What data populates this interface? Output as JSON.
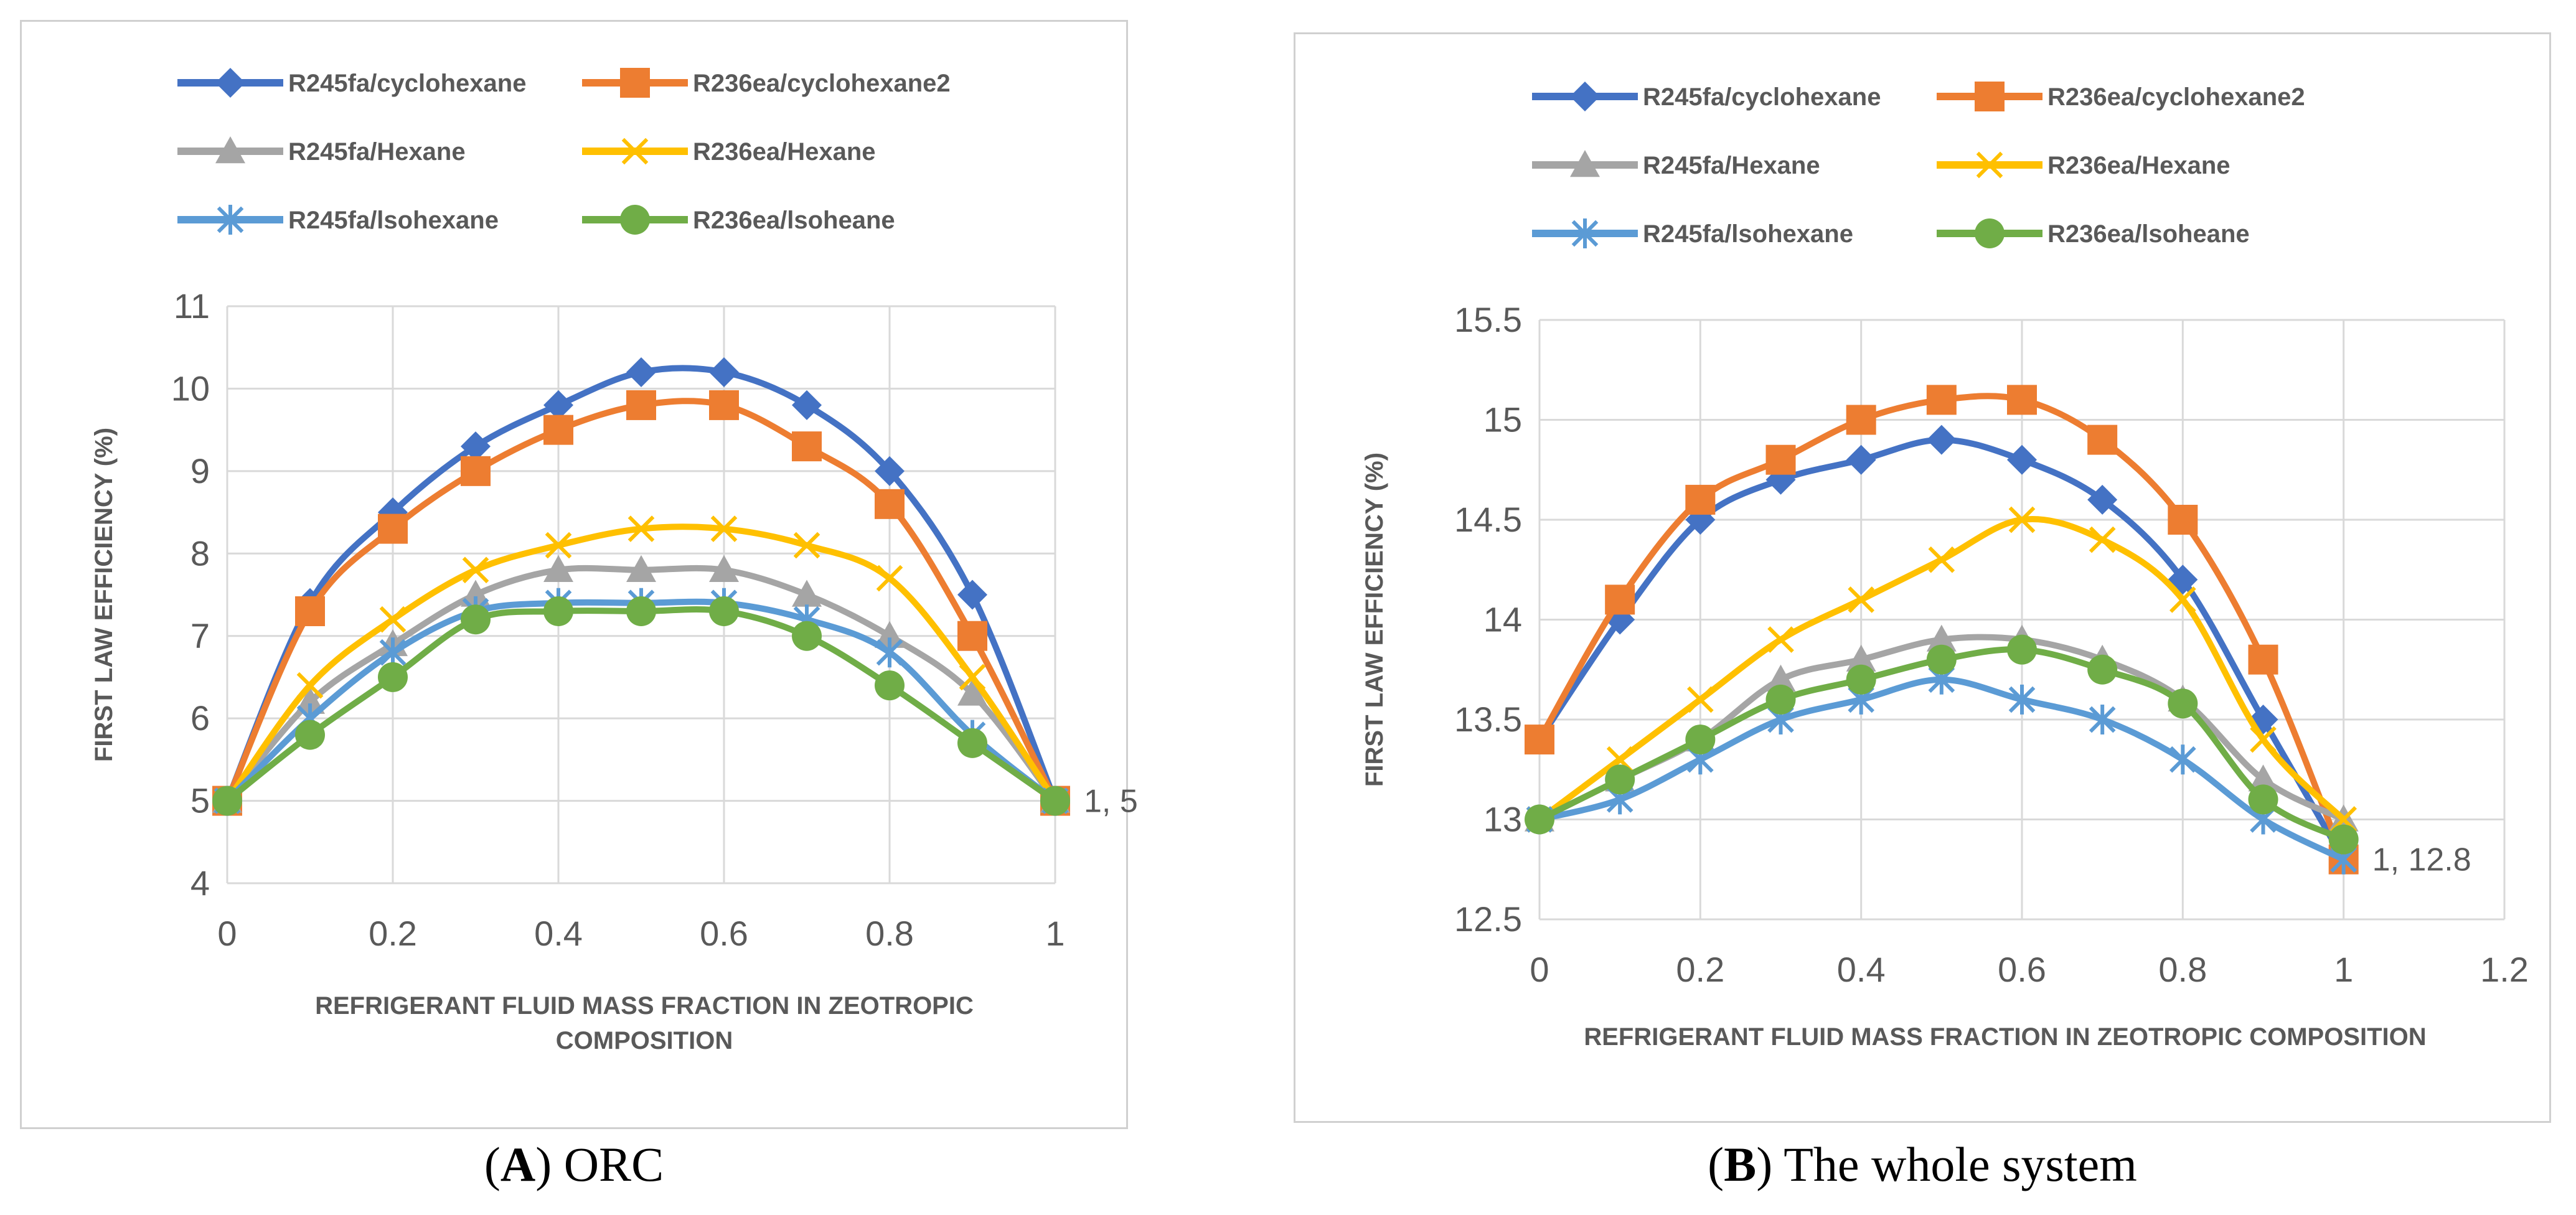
{
  "chart_data": [
    {
      "type": "line",
      "caption_letter": "A",
      "caption_text": ") ORC",
      "xlabel_lines": [
        "REFRIGERANT FLUID MASS FRACTION IN ZEOTROPIC",
        "COMPOSITION"
      ],
      "ylabel": "FIRST LAW EFFICIENCY (%)",
      "xlim": [
        0,
        1
      ],
      "ylim": [
        4,
        11
      ],
      "xticks": [
        0,
        0.2,
        0.4,
        0.6,
        0.8,
        1
      ],
      "xtick_labels": [
        "0",
        "0.2",
        "0.4",
        "0.6",
        "0.8",
        "1"
      ],
      "yticks": [
        4,
        5,
        6,
        7,
        8,
        9,
        10,
        11
      ],
      "ytick_labels": [
        "4",
        "5",
        "6",
        "7",
        "8",
        "9",
        "10",
        "11"
      ],
      "grid": true,
      "legend_position": "top",
      "annotation": {
        "text": "1, 5",
        "x": 1,
        "y": 5
      },
      "x": [
        0,
        0.1,
        0.2,
        0.3,
        0.4,
        0.5,
        0.6,
        0.7,
        0.8,
        0.9,
        1
      ],
      "series": [
        {
          "name": "R245fa/cyclohexane",
          "color": "#4472C4",
          "marker": "diamond",
          "values": [
            5,
            7.4,
            8.5,
            9.3,
            9.8,
            10.2,
            10.2,
            9.8,
            9.0,
            7.5,
            5
          ]
        },
        {
          "name": "R236ea/cyclohexane2",
          "color": "#ED7D31",
          "marker": "square",
          "values": [
            5,
            7.3,
            8.3,
            9.0,
            9.5,
            9.8,
            9.8,
            9.3,
            8.6,
            7.0,
            5
          ]
        },
        {
          "name": "R245fa/Hexane",
          "color": "#A5A5A5",
          "marker": "triangle",
          "values": [
            5,
            6.2,
            6.9,
            7.5,
            7.8,
            7.8,
            7.8,
            7.5,
            7.0,
            6.3,
            5
          ]
        },
        {
          "name": "R236ea/Hexane",
          "color": "#FFC000",
          "marker": "x",
          "values": [
            5,
            6.4,
            7.2,
            7.8,
            8.1,
            8.3,
            8.3,
            8.1,
            7.7,
            6.5,
            5
          ]
        },
        {
          "name": "R245fa/Isohexane",
          "color": "#5B9BD5",
          "marker": "star",
          "values": [
            5,
            6.0,
            6.8,
            7.3,
            7.4,
            7.4,
            7.4,
            7.2,
            6.8,
            5.8,
            5
          ]
        },
        {
          "name": "R236ea/Isoheane",
          "color": "#70AD47",
          "marker": "circle",
          "values": [
            5,
            5.8,
            6.5,
            7.2,
            7.3,
            7.3,
            7.3,
            7.0,
            6.4,
            5.7,
            5
          ]
        }
      ],
      "legend_labels": [
        "R245fa/cyclohexane",
        "R236ea/cyclohexane2",
        "R245fa/Hexane",
        "R236ea/Hexane",
        "R245fa/lsohexane",
        "R236ea/lsoheane"
      ]
    },
    {
      "type": "line",
      "caption_letter": "B",
      "caption_text": ") The whole system",
      "xlabel_lines": [
        "REFRIGERANT FLUID MASS FRACTION IN ZEOTROPIC COMPOSITION"
      ],
      "ylabel": "FIRST LAW EFFICIENCY (%)",
      "xlim": [
        0,
        1.2
      ],
      "ylim": [
        12.5,
        15.5
      ],
      "xticks": [
        0,
        0.2,
        0.4,
        0.6,
        0.8,
        1,
        1.2
      ],
      "xtick_labels": [
        "0",
        "0.2",
        "0.4",
        "0.6",
        "0.8",
        "1",
        "1.2"
      ],
      "yticks": [
        12.5,
        13,
        13.5,
        14,
        14.5,
        15,
        15.5
      ],
      "ytick_labels": [
        "12.5",
        "13",
        "13.5",
        "14",
        "14.5",
        "15",
        "15.5"
      ],
      "grid": true,
      "legend_position": "top",
      "annotation": {
        "text": "1, 12.8",
        "x": 1,
        "y": 12.8
      },
      "x": [
        0,
        0.1,
        0.2,
        0.3,
        0.4,
        0.5,
        0.6,
        0.7,
        0.8,
        0.9,
        1
      ],
      "series": [
        {
          "name": "R245fa/cyclohexane",
          "color": "#4472C4",
          "marker": "diamond",
          "values": [
            13.4,
            14.0,
            14.5,
            14.7,
            14.8,
            14.9,
            14.8,
            14.6,
            14.2,
            13.5,
            12.8
          ]
        },
        {
          "name": "R236ea/cyclohexane2",
          "color": "#ED7D31",
          "marker": "square",
          "values": [
            13.4,
            14.1,
            14.6,
            14.8,
            15.0,
            15.1,
            15.1,
            14.9,
            14.5,
            13.8,
            12.8
          ]
        },
        {
          "name": "R245fa/Hexane",
          "color": "#A5A5A5",
          "marker": "triangle",
          "values": [
            13.0,
            13.2,
            13.4,
            13.7,
            13.8,
            13.9,
            13.9,
            13.8,
            13.6,
            13.2,
            13.0
          ]
        },
        {
          "name": "R236ea/Hexane",
          "color": "#FFC000",
          "marker": "x",
          "values": [
            13.0,
            13.3,
            13.6,
            13.9,
            14.1,
            14.3,
            14.5,
            14.4,
            14.1,
            13.4,
            13.0
          ]
        },
        {
          "name": "R245fa/Isohexane",
          "color": "#5B9BD5",
          "marker": "star",
          "values": [
            13.0,
            13.1,
            13.3,
            13.5,
            13.6,
            13.7,
            13.6,
            13.5,
            13.3,
            13.0,
            12.8
          ]
        },
        {
          "name": "R236ea/Isoheane",
          "color": "#70AD47",
          "marker": "circle",
          "values": [
            13.0,
            13.2,
            13.4,
            13.6,
            13.7,
            13.8,
            13.85,
            13.75,
            13.58,
            13.1,
            12.9
          ]
        }
      ],
      "legend_labels": [
        "R245fa/cyclohexane",
        "R236ea/cyclohexane2",
        "R245fa/Hexane",
        "R236ea/Hexane",
        "R245fa/lsohexane",
        "R236ea/lsoheane"
      ]
    }
  ]
}
